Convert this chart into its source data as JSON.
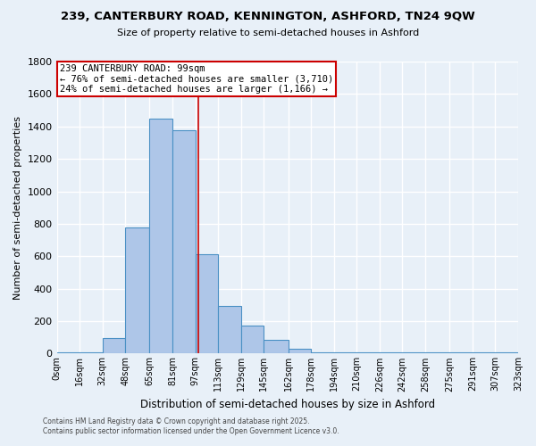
{
  "title": "239, CANTERBURY ROAD, KENNINGTON, ASHFORD, TN24 9QW",
  "subtitle": "Size of property relative to semi-detached houses in Ashford",
  "xlabel": "Distribution of semi-detached houses by size in Ashford",
  "ylabel": "Number of semi-detached properties",
  "bar_values": [
    5,
    5,
    95,
    775,
    1450,
    1375,
    610,
    295,
    175,
    85,
    30,
    5,
    5,
    5,
    5,
    5,
    5,
    5,
    5,
    5
  ],
  "bin_edges": [
    0,
    16,
    32,
    48,
    65,
    81,
    97,
    113,
    129,
    145,
    162,
    178,
    194,
    210,
    226,
    242,
    258,
    275,
    291,
    307,
    323
  ],
  "bin_labels": [
    "0sqm",
    "16sqm",
    "32sqm",
    "48sqm",
    "65sqm",
    "81sqm",
    "97sqm",
    "113sqm",
    "129sqm",
    "145sqm",
    "162sqm",
    "178sqm",
    "194sqm",
    "210sqm",
    "226sqm",
    "242sqm",
    "258sqm",
    "275sqm",
    "291sqm",
    "307sqm",
    "323sqm"
  ],
  "bar_color": "#aec6e8",
  "bar_edge_color": "#4a90c4",
  "background_color": "#e8f0f8",
  "grid_color": "#ffffff",
  "property_size": 99,
  "vline_color": "#cc0000",
  "annotation_line1": "239 CANTERBURY ROAD: 99sqm",
  "annotation_line2": "← 76% of semi-detached houses are smaller (3,710)",
  "annotation_line3": "24% of semi-detached houses are larger (1,166) →",
  "annotation_box_color": "#cc0000",
  "ylim": [
    0,
    1800
  ],
  "yticks": [
    0,
    200,
    400,
    600,
    800,
    1000,
    1200,
    1400,
    1600,
    1800
  ],
  "footer_line1": "Contains HM Land Registry data © Crown copyright and database right 2025.",
  "footer_line2": "Contains public sector information licensed under the Open Government Licence v3.0."
}
